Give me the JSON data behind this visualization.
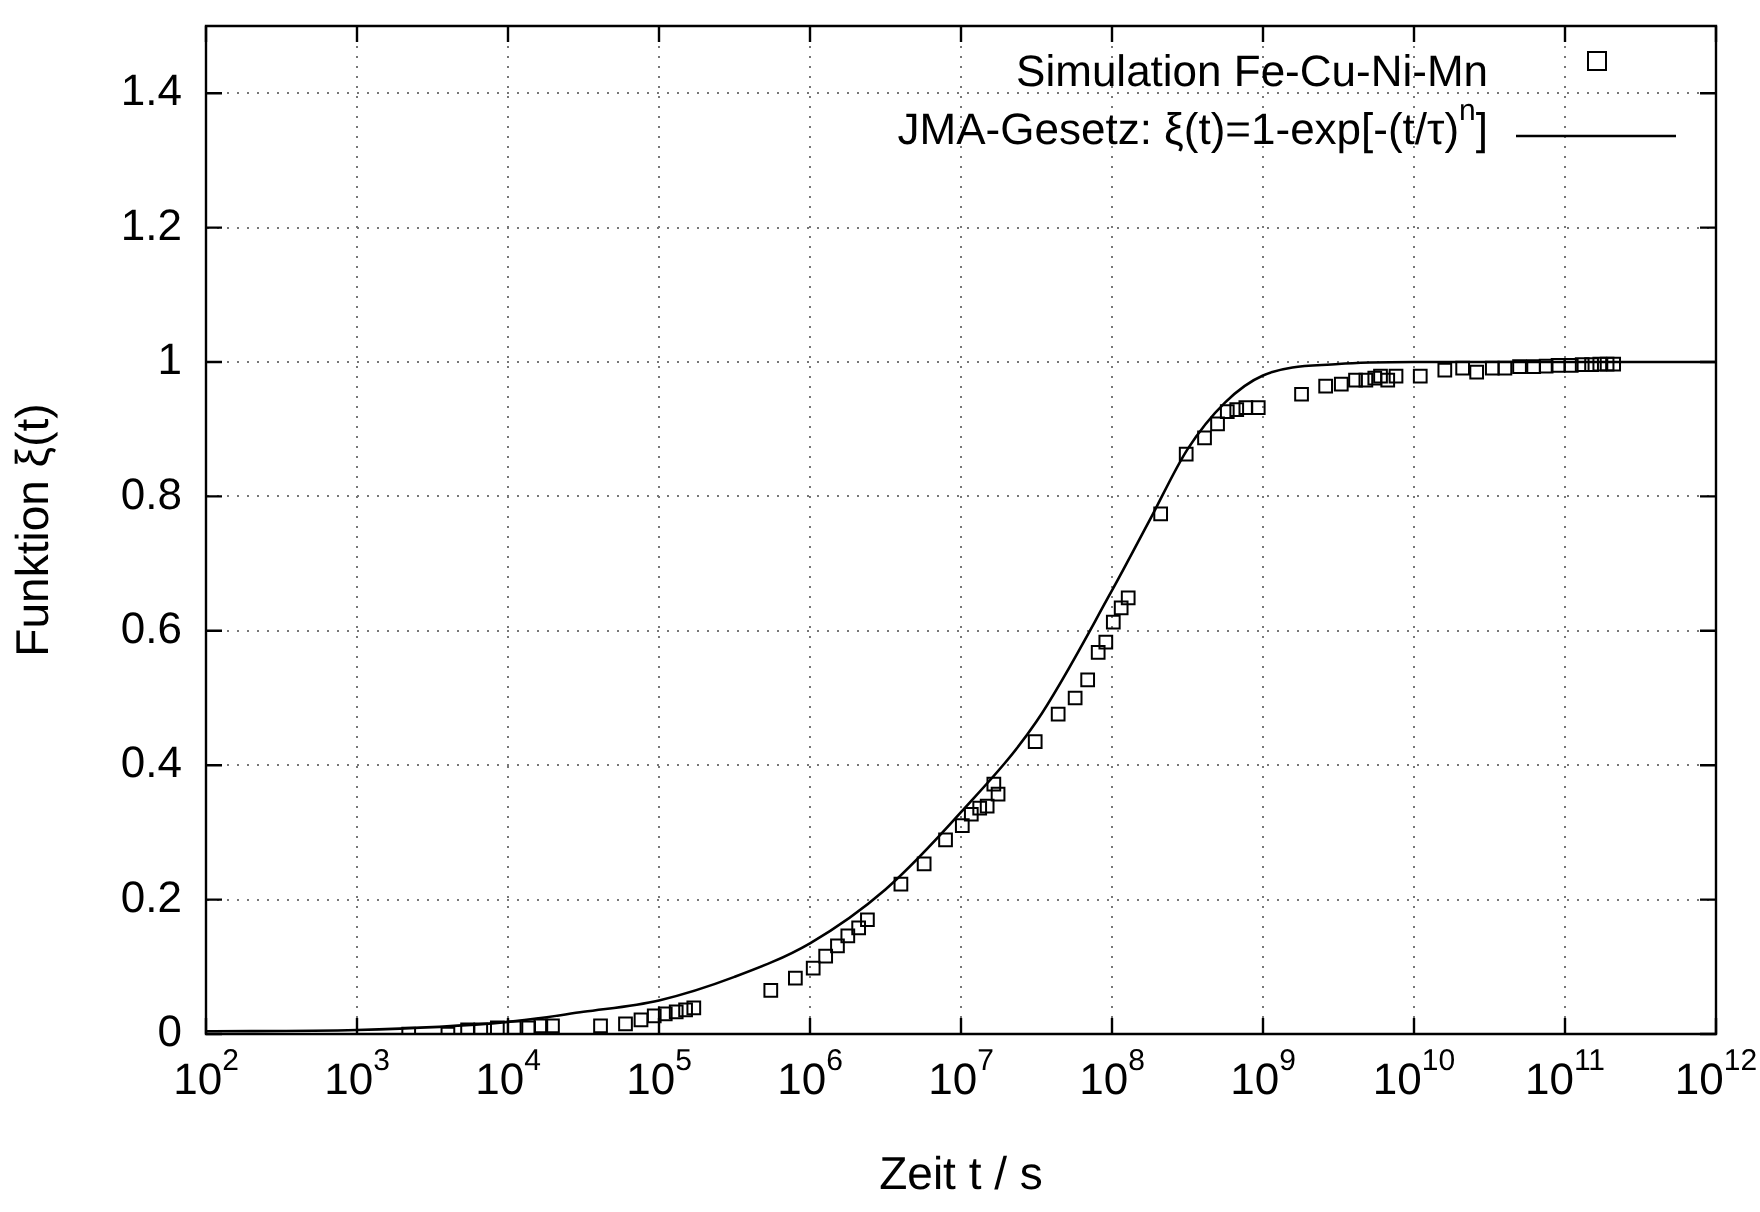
{
  "chart_data": {
    "type": "scatter",
    "xlabel": "Zeit t / s",
    "ylabel": "Funktion ξ(t)",
    "log": "x",
    "grid": true,
    "legend": "top right",
    "marker": "square",
    "xlim": [
      100,
      1000000000000
    ],
    "xticks": [
      {
        "value": 100,
        "label": "10$^{2}$"
      },
      {
        "value": 1000,
        "label": "10$^{3}$"
      },
      {
        "value": 10000,
        "label": "10$^{4}$"
      },
      {
        "value": 100000,
        "label": "10$^{5}$"
      },
      {
        "value": 1000000,
        "label": "10$^{6}$"
      },
      {
        "value": 10000000,
        "label": "10$^{7}$"
      },
      {
        "value": 100000000,
        "label": "10$^{8}$"
      },
      {
        "value": 1000000000,
        "label": "10$^{9}$"
      },
      {
        "value": 10000000000,
        "label": "10$^{10}$"
      },
      {
        "value": 100000000000,
        "label": "10$^{11}$"
      },
      {
        "value": 1000000000000,
        "label": "10$^{12}$"
      }
    ],
    "ylim": [
      0,
      1.5
    ],
    "yticks": [
      0,
      0.2,
      0.4,
      0.6,
      0.8,
      1,
      1.2,
      1.4
    ],
    "series": [
      {
        "name": "Simulation Fe-Cu-Ni-Mn",
        "color": "#000000",
        "x": [
          2200,
          4000,
          5400,
          6600,
          8500,
          11000,
          13700,
          16500,
          19700,
          41000,
          60000,
          76000,
          93000,
          110000,
          130000,
          150000,
          170000,
          550000,
          800000,
          1050000,
          1270000,
          1520000,
          1780000,
          2100000,
          2400000,
          4000000,
          5700000,
          7900000,
          10200000,
          11700000,
          13300000,
          14900000,
          16500000,
          17600000,
          31000000,
          44000000,
          57000000,
          69000000,
          81000000,
          91000000,
          102000000,
          115000000,
          128000000,
          210000000,
          310000000,
          410000000,
          500000000,
          580000000,
          670000000,
          770000000,
          930000000,
          1800000000,
          2600000000,
          3300000000,
          4100000000,
          4800000000,
          5500000000,
          6000000000,
          6700000000,
          7600000000,
          11000000000,
          16000000000,
          21000000000,
          26000000000,
          33000000000,
          40000000000,
          50000000000,
          62000000000,
          75000000000,
          90000000000,
          110000000000,
          130000000000,
          150000000000,
          170000000000,
          190000000000,
          210000000000
        ],
        "values": [
          0,
          0,
          0.006,
          0.006,
          0.009,
          0.009,
          0.009,
          0.012,
          0.012,
          0.012,
          0.015,
          0.021,
          0.027,
          0.03,
          0.033,
          0.036,
          0.039,
          0.065,
          0.083,
          0.098,
          0.116,
          0.131,
          0.146,
          0.158,
          0.17,
          0.223,
          0.253,
          0.289,
          0.31,
          0.327,
          0.336,
          0.339,
          0.372,
          0.357,
          0.435,
          0.476,
          0.5,
          0.527,
          0.568,
          0.583,
          0.613,
          0.634,
          0.649,
          0.774,
          0.863,
          0.887,
          0.908,
          0.926,
          0.929,
          0.932,
          0.932,
          0.952,
          0.964,
          0.967,
          0.973,
          0.973,
          0.976,
          0.979,
          0.973,
          0.979,
          0.979,
          0.988,
          0.991,
          0.985,
          0.991,
          0.991,
          0.993,
          0.993,
          0.994,
          0.995,
          0.995,
          0.996,
          0.996,
          0.997,
          0.997,
          0.997
        ]
      },
      {
        "name": "JMA-Gesetz: ξ(t)=1-exp[-(t/τ)$^{n}$]",
        "type": "line",
        "color": "#000000",
        "marker": "none",
        "line_style": "solid",
        "x": [
          100,
          1000,
          10000,
          31600,
          100000,
          316000,
          1000000,
          3160000,
          10000000,
          31600000,
          100000000,
          178000000,
          316000000,
          562000000,
          1000000000,
          3160000000,
          10000000000,
          100000000000,
          1000000000000
        ],
        "values": [
          0.004,
          0.006,
          0.018,
          0.033,
          0.05,
          0.085,
          0.135,
          0.215,
          0.33,
          0.465,
          0.66,
          0.765,
          0.87,
          0.94,
          0.98,
          0.997,
          1,
          1,
          1
        ]
      }
    ]
  }
}
